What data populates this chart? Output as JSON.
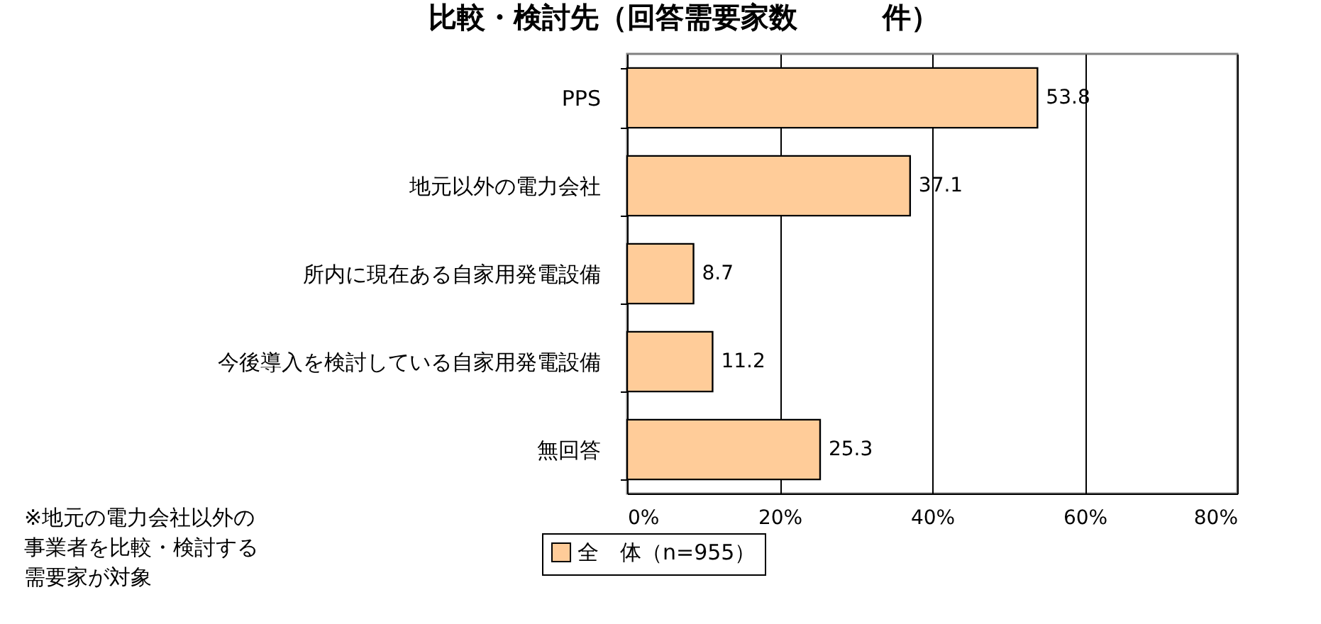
{
  "chart_data": {
    "type": "bar",
    "orientation": "horizontal",
    "title": "比較・検討先（回答需要家数　　　件）",
    "categories": [
      "PPS",
      "地元以外の電力会社",
      "所内に現在ある自家用発電設備",
      "今後導入を検討している自家用発電設備",
      "無回答"
    ],
    "series": [
      {
        "name": "全　体（n=955）",
        "color": "#ffcc99",
        "values": [
          53.8,
          37.1,
          8.7,
          11.2,
          25.3
        ]
      }
    ],
    "xlim": [
      0,
      80
    ],
    "xticks": [
      {
        "value": 0,
        "label": "0%"
      },
      {
        "value": 20,
        "label": "20%"
      },
      {
        "value": 40,
        "label": "40%"
      },
      {
        "value": 60,
        "label": "60%"
      },
      {
        "value": 80,
        "label": "80%"
      }
    ],
    "grid": "x",
    "legend": "bottom",
    "data_labels": true,
    "annotations": [
      "※地元の電力会社以外の事業者を比較・検討する需要家が対象"
    ]
  }
}
